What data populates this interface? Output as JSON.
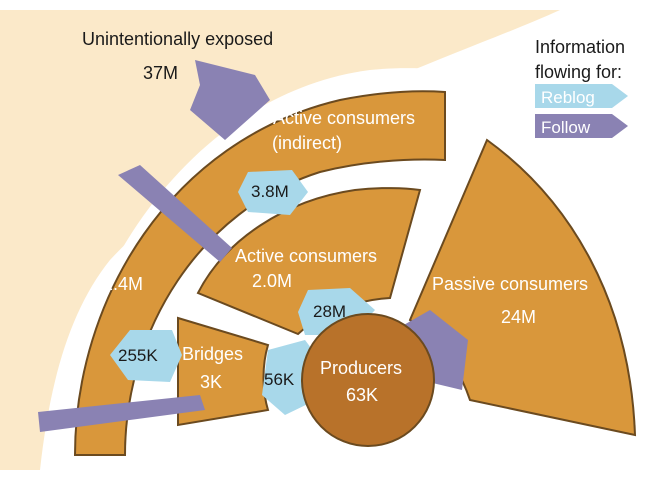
{
  "colors": {
    "background_wedge": "#fbe9c9",
    "segment": "#d9973b",
    "segment_stroke": "#6b4a1f",
    "producer": "#b8722a",
    "reblog": "#a8d8ea",
    "follow": "#8a82b3",
    "white_ring": "#ffffff"
  },
  "segments": {
    "unintentionally_exposed": {
      "label": "Unintentionally exposed",
      "value": "37M"
    },
    "indirect_consumers": {
      "label_line1": "Active consumers",
      "label_line2": "(indirect)",
      "value_left": "2.4M"
    },
    "active_consumers": {
      "label": "Active consumers",
      "value": "2.0M"
    },
    "passive_consumers": {
      "label": "Passive consumers",
      "value": "24M"
    },
    "bridges": {
      "label": "Bridges",
      "value": "3K"
    },
    "producers": {
      "label": "Producers",
      "value": "63K"
    }
  },
  "flows": {
    "indirect_to_active": "3.8M",
    "active_to_producers": "28M",
    "bridges_in": "255K",
    "bridges_to_producers": "56K"
  },
  "legend": {
    "title_line1": "Information",
    "title_line2": "flowing for:",
    "reblog": "Reblog",
    "follow": "Follow"
  }
}
